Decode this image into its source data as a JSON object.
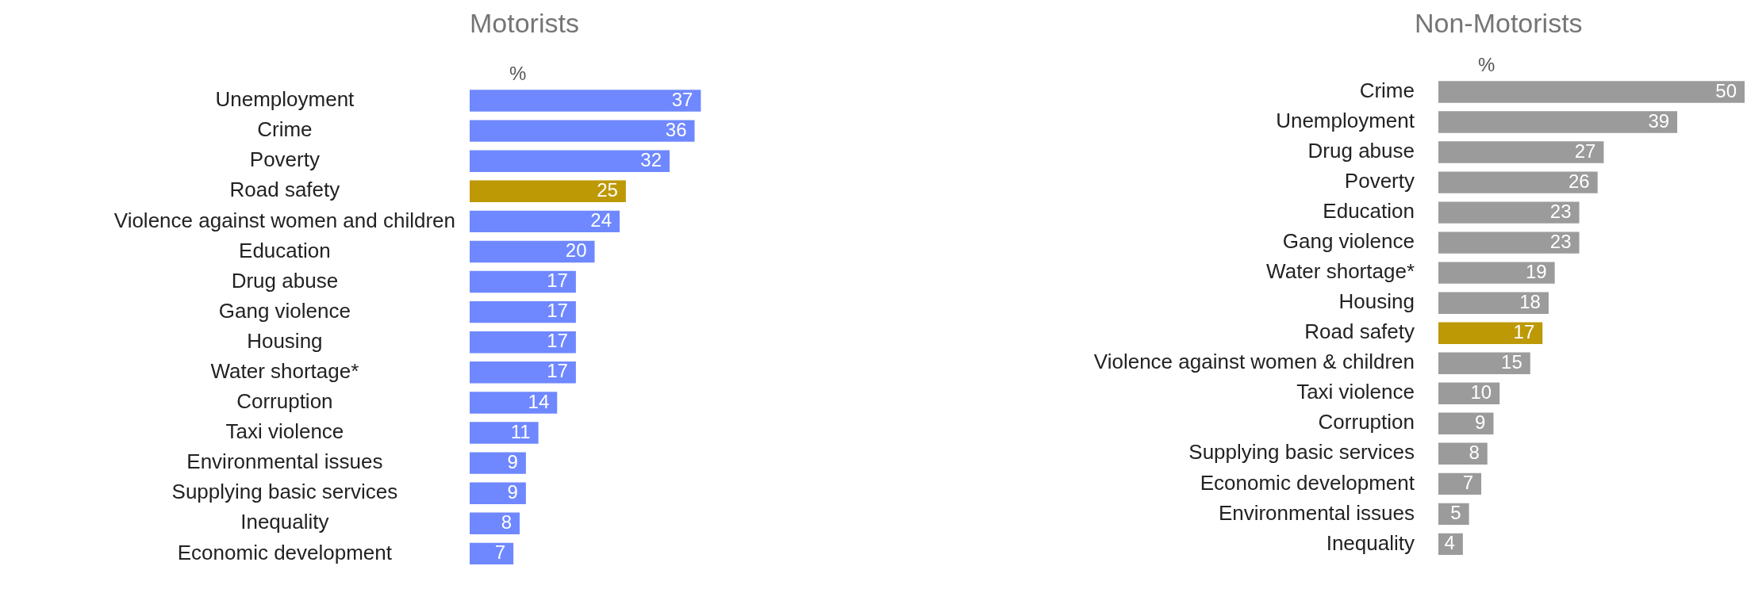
{
  "chart_data": [
    {
      "type": "bar",
      "orientation": "horizontal",
      "title": "Motorists",
      "xlabel": "%",
      "data_labels": true,
      "tick_labels": "y",
      "grid": false,
      "legend": false,
      "categories": [
        "Unemployment",
        "Crime",
        "Poverty",
        "Road safety",
        "Violence against women and children",
        "Education",
        "Drug abuse",
        "Gang violence",
        "Housing",
        "Water shortage*",
        "Corruption",
        "Taxi violence",
        "Environmental issues",
        "Supplying basic services",
        "Inequality",
        "Economic development"
      ],
      "values": [
        37,
        36,
        32,
        25,
        24,
        20,
        17,
        17,
        17,
        17,
        14,
        11,
        9,
        9,
        8,
        7
      ],
      "colors": [
        "#6f88ff",
        "#6f88ff",
        "#6f88ff",
        "#bd9906",
        "#6f88ff",
        "#6f88ff",
        "#6f88ff",
        "#6f88ff",
        "#6f88ff",
        "#6f88ff",
        "#6f88ff",
        "#6f88ff",
        "#6f88ff",
        "#6f88ff",
        "#6f88ff",
        "#6f88ff"
      ]
    },
    {
      "type": "bar",
      "orientation": "horizontal",
      "title": "Non-Motorists",
      "xlabel": "%",
      "data_labels": true,
      "tick_labels": "y",
      "grid": false,
      "legend": false,
      "categories": [
        "Crime",
        "Unemployment",
        "Drug abuse",
        "Poverty",
        "Education",
        "Gang violence",
        "Water shortage*",
        "Housing",
        "Road safety",
        "Violence against women & children",
        "Taxi violence",
        "Corruption",
        "Supplying basic services",
        "Economic development",
        "Environmental issues",
        "Inequality"
      ],
      "values": [
        50,
        39,
        27,
        26,
        23,
        23,
        19,
        18,
        17,
        15,
        10,
        9,
        8,
        7,
        5,
        4
      ],
      "colors": [
        "#9b9b9b",
        "#9b9b9b",
        "#9b9b9b",
        "#9b9b9b",
        "#9b9b9b",
        "#9b9b9b",
        "#9b9b9b",
        "#9b9b9b",
        "#bd9906",
        "#9b9b9b",
        "#9b9b9b",
        "#9b9b9b",
        "#9b9b9b",
        "#9b9b9b",
        "#9b9b9b",
        "#9b9b9b"
      ]
    }
  ]
}
